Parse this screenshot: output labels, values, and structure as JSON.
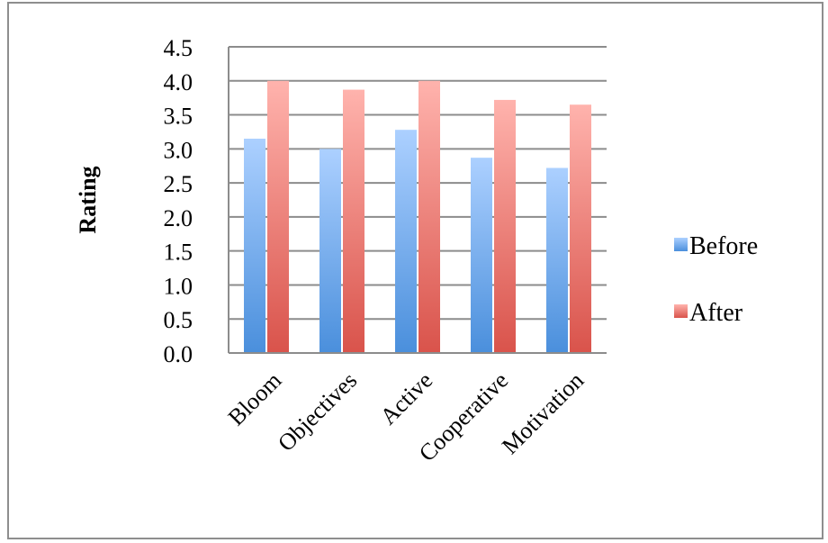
{
  "chart_data": {
    "type": "bar",
    "title": "",
    "xlabel": "",
    "ylabel": "Rating",
    "ylim": [
      0,
      4.5
    ],
    "yticks": [
      "0.0",
      "0.5",
      "1.0",
      "1.5",
      "2.0",
      "2.5",
      "3.0",
      "3.5",
      "4.0",
      "4.5"
    ],
    "categories": [
      "Bloom",
      "Objectives",
      "Active",
      "Cooperative",
      "Motivation"
    ],
    "series": [
      {
        "name": "Before",
        "values": [
          3.15,
          3.0,
          3.28,
          2.87,
          2.72
        ],
        "color_top": "#acd0ff",
        "color_bottom": "#4a8fdc"
      },
      {
        "name": "After",
        "values": [
          4.0,
          3.87,
          4.0,
          3.72,
          3.65
        ],
        "color_top": "#ffb3ad",
        "color_bottom": "#d9534b"
      }
    ],
    "grid": true,
    "legend_position": "right"
  }
}
